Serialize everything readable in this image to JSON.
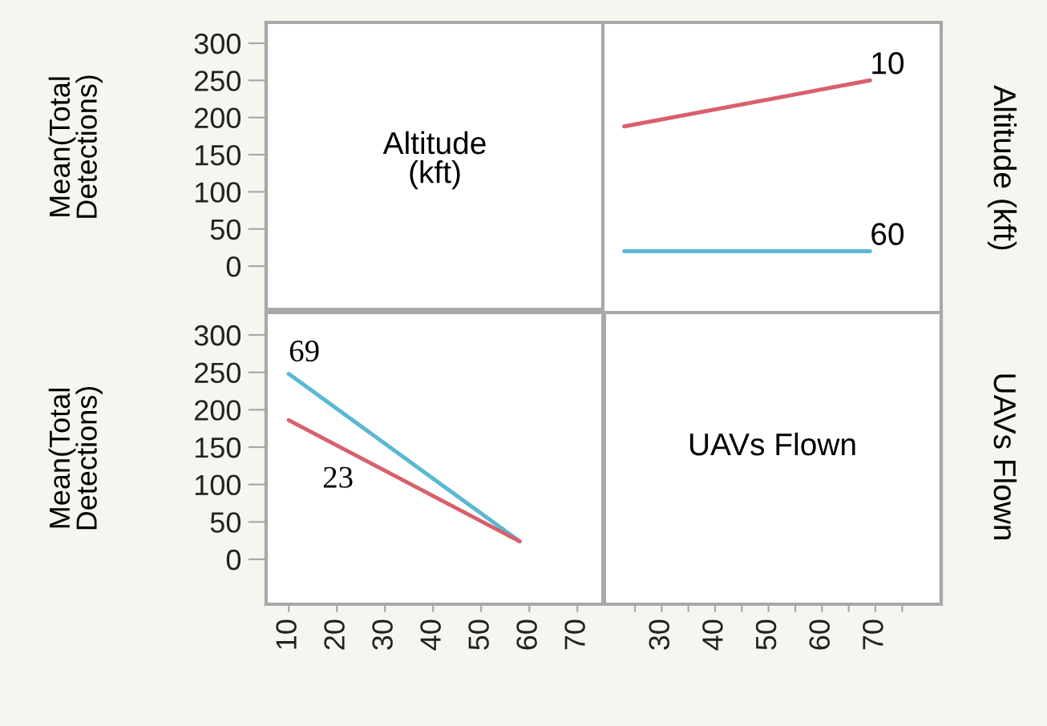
{
  "chart_data": [
    {
      "type": "line",
      "annotations": [
        "Altitude\n(kft)",
        "UAVs Flown",
        "Altitude (kft)",
        "UAVs Flown"
      ],
      "ylabel": "Mean(Total\nDetections)",
      "xlim": [
        -44,
        82.3
      ],
      "xticks": [
        {
          "value": 25,
          "label": null
        },
        30,
        {
          "value": 35,
          "label": null
        },
        40,
        {
          "value": 45,
          "label": null
        },
        50,
        {
          "value": 55,
          "label": null
        },
        60,
        {
          "value": 65,
          "label": null
        },
        70,
        {
          "value": 75,
          "label": null
        }
      ],
      "ylim": [
        -455,
        328
      ],
      "yticks": [
        0,
        50,
        100,
        150,
        200,
        250,
        300
      ],
      "series": [
        {
          "name": "10",
          "color": "#d8606c",
          "x": [
            23,
            69
          ],
          "values": [
            188,
            250
          ]
        },
        {
          "name": "60",
          "color": "#5ab8d2",
          "x": [
            23,
            69
          ],
          "values": [
            20,
            20
          ]
        }
      ]
    },
    {
      "type": "line",
      "ylabel": "Mean(Total\nDetections)",
      "xlim": [
        5.3,
        75.3
      ],
      "xticks": [
        10,
        20,
        30,
        40,
        50,
        60,
        70
      ],
      "ylim": [
        -60,
        330
      ],
      "yticks": [
        0,
        50,
        100,
        150,
        200,
        250,
        300
      ],
      "series": [
        {
          "name": "69",
          "color": "#5ab8d2",
          "x": [
            10,
            58
          ],
          "values": [
            248,
            24
          ]
        },
        {
          "name": "23",
          "color": "#d8606c",
          "x": [
            10,
            58
          ],
          "values": [
            186,
            24
          ]
        }
      ]
    }
  ]
}
